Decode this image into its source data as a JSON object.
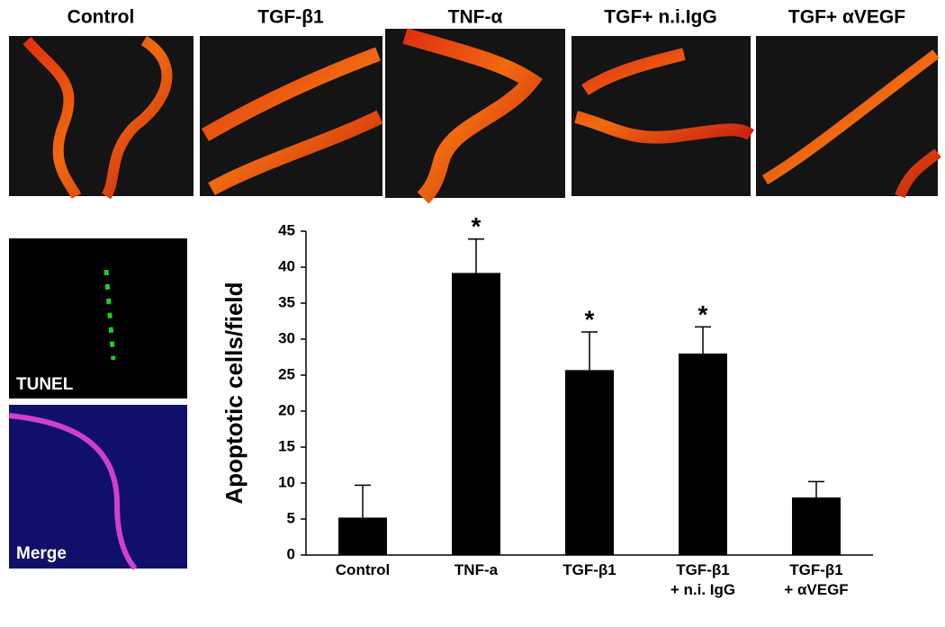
{
  "panels": {
    "top": [
      "Control",
      "TGF-β1",
      "TNF-α",
      "TGF+ n.i.IgG",
      "TGF+ αVEGF"
    ],
    "left": [
      "TUNEL",
      "Merge"
    ]
  },
  "chart_data": {
    "type": "bar",
    "ylabel": "Apoptotic cells/field",
    "categories": [
      "Control",
      "TNF-a",
      "TGF-β1",
      "TGF-β1\n+ n.i. IgG",
      "TGF-β1\n+ αVEGF"
    ],
    "values": [
      5.2,
      39.2,
      25.7,
      28,
      8
    ],
    "errors": [
      4.5,
      4.7,
      5.3,
      3.7,
      2.2
    ],
    "significance": [
      null,
      "*",
      "*",
      "*",
      null
    ],
    "color": "#000000",
    "ylim": [
      0,
      45
    ],
    "yticks": [
      0,
      5,
      10,
      15,
      20,
      25,
      30,
      35,
      40,
      45
    ]
  }
}
